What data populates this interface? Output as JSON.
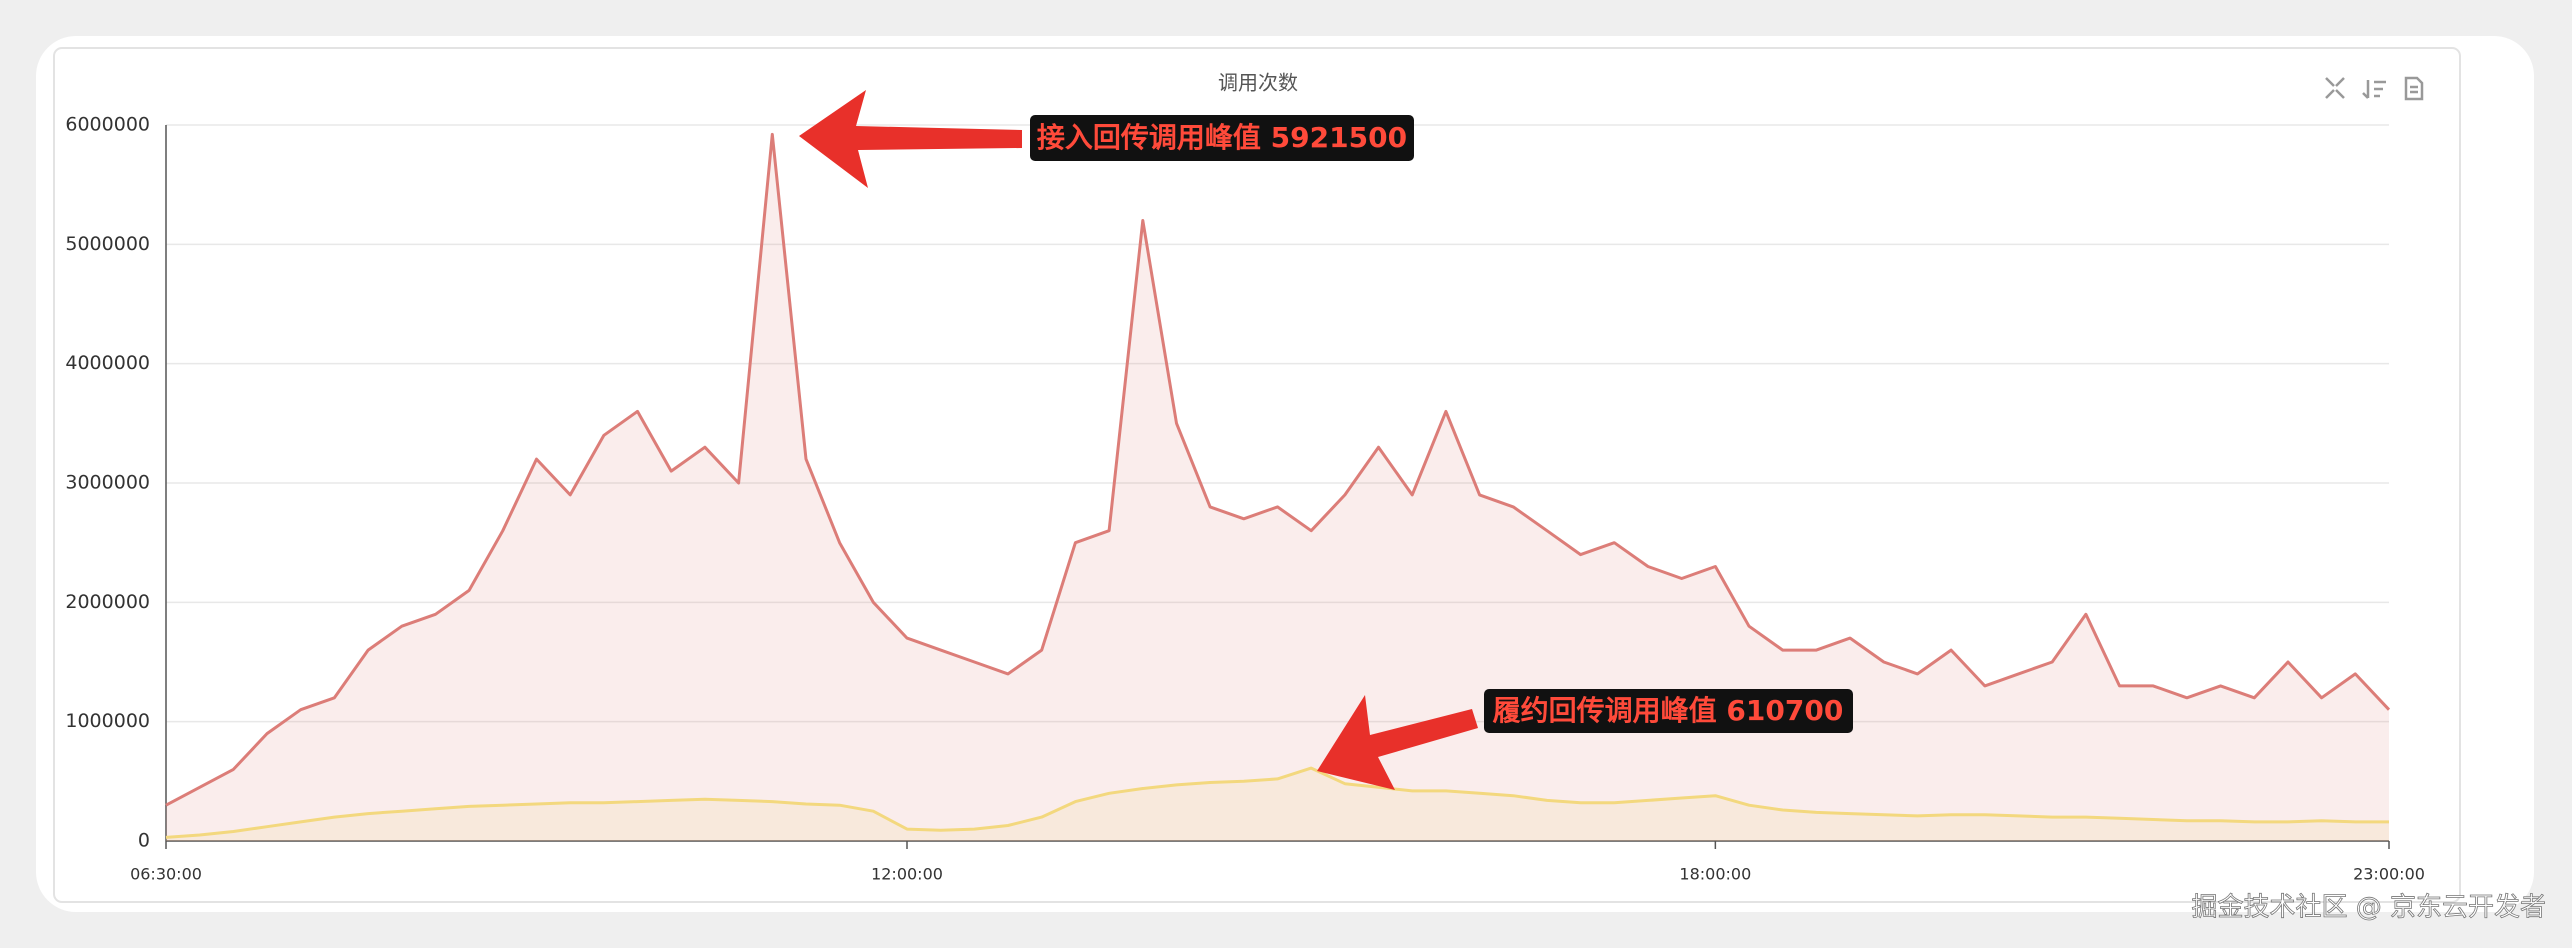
{
  "chart_data": {
    "type": "area",
    "title": "调用次数",
    "categories": [
      "06:30:00",
      null,
      null,
      null,
      null,
      null,
      null,
      null,
      null,
      null,
      null,
      null,
      null,
      null,
      null,
      null,
      null,
      null,
      null,
      null,
      null,
      null,
      "12:00:00",
      null,
      null,
      null,
      null,
      null,
      null,
      null,
      null,
      null,
      null,
      null,
      null,
      null,
      null,
      null,
      null,
      null,
      null,
      null,
      null,
      null,
      null,
      null,
      "18:00:00",
      null,
      null,
      null,
      null,
      null,
      null,
      null,
      null,
      null,
      null,
      null,
      null,
      null,
      null,
      null,
      null,
      null,
      null,
      null,
      "23:00:00"
    ],
    "series": [
      {
        "color": "#dc7d78",
        "values": [
          300000,
          450000,
          600000,
          900000,
          1100000,
          1200000,
          1600000,
          1800000,
          1900000,
          2100000,
          2600000,
          3200000,
          2900000,
          3400000,
          3600000,
          3100000,
          3300000,
          3000000,
          5921500,
          3200000,
          2500000,
          2000000,
          1700000,
          1600000,
          1500000,
          1400000,
          1600000,
          2500000,
          2600000,
          5200000,
          3500000,
          2800000,
          2700000,
          2800000,
          2600000,
          2900000,
          3300000,
          2900000,
          3600000,
          2900000,
          2800000,
          2600000,
          2400000,
          2500000,
          2300000,
          2200000,
          2300000,
          1800000,
          1600000,
          1600000,
          1700000,
          1500000,
          1400000,
          1600000,
          1300000,
          1400000,
          1500000,
          1900000,
          1300000,
          1300000,
          1200000,
          1300000,
          1200000,
          1500000,
          1200000,
          1400000,
          1100000
        ]
      },
      {
        "color": "#f3d87e",
        "values": [
          30000,
          50000,
          80000,
          120000,
          160000,
          200000,
          230000,
          250000,
          270000,
          290000,
          300000,
          310000,
          320000,
          320000,
          330000,
          340000,
          350000,
          340000,
          330000,
          310000,
          300000,
          250000,
          100000,
          90000,
          100000,
          130000,
          200000,
          330000,
          400000,
          440000,
          470000,
          490000,
          500000,
          520000,
          610700,
          480000,
          450000,
          420000,
          420000,
          400000,
          380000,
          340000,
          320000,
          320000,
          340000,
          360000,
          380000,
          300000,
          260000,
          240000,
          230000,
          220000,
          210000,
          220000,
          220000,
          210000,
          200000,
          200000,
          190000,
          180000,
          170000,
          170000,
          160000,
          160000,
          170000,
          160000,
          160000
        ]
      }
    ],
    "ylim": [
      0,
      6000000
    ],
    "yticks": [
      0,
      1000000,
      2000000,
      3000000,
      4000000,
      5000000,
      6000000
    ],
    "grid": true,
    "annotations": [
      "接入回传调用峰值 5921500",
      "履约回传调用峰值 610700"
    ]
  },
  "watermark": "掘金技术社区 @ 京东云开发者"
}
